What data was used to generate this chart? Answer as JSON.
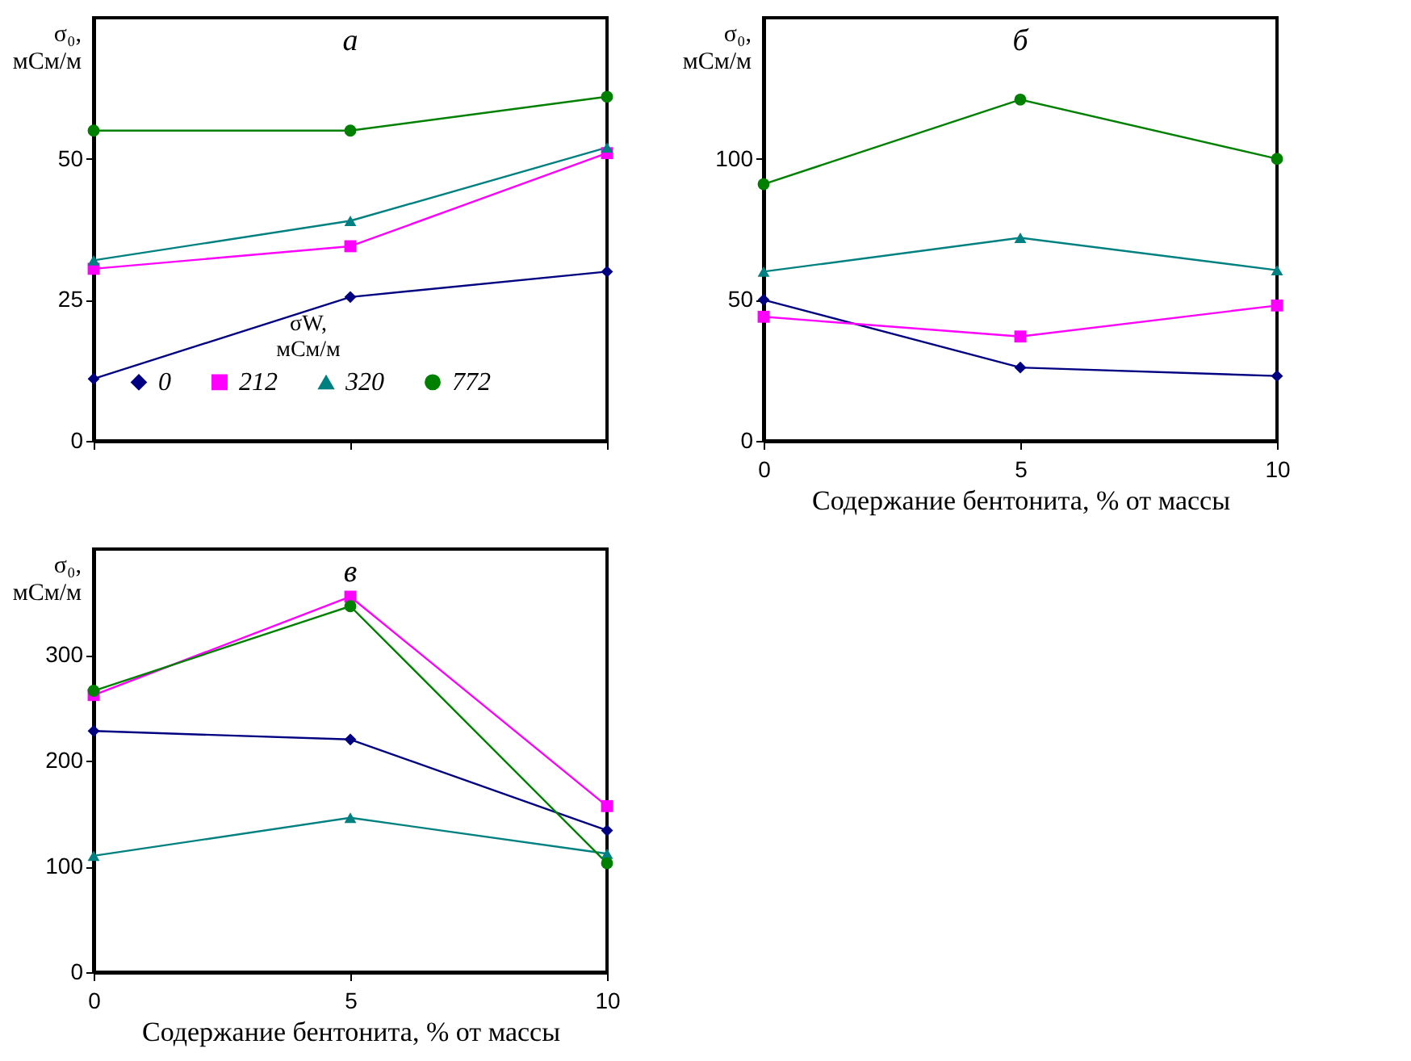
{
  "chart_data": [
    {
      "type": "line",
      "title": "а",
      "x": [
        0,
        5,
        10
      ],
      "xlim": [
        0,
        10
      ],
      "xticks": [
        0,
        5,
        10
      ],
      "ylim": [
        0,
        75
      ],
      "yticks": [
        0,
        25,
        50
      ],
      "ylabel": "σ₀, мСм/м",
      "tick_labels": "y",
      "legend": "bottom",
      "legend_title": "σW, мСм/м",
      "grid": false,
      "series": [
        {
          "name": "0",
          "color": "#000080",
          "marker": "diamond",
          "values": [
            11,
            25.5,
            30
          ]
        },
        {
          "name": "212",
          "color": "#ff00ff",
          "marker": "square",
          "values": [
            30.5,
            34.5,
            51
          ]
        },
        {
          "name": "320",
          "color": "#008080",
          "marker": "triangle",
          "values": [
            32,
            39,
            52
          ]
        },
        {
          "name": "772",
          "color": "#008000",
          "marker": "circle",
          "values": [
            55,
            55,
            61
          ]
        }
      ]
    },
    {
      "type": "line",
      "title": "б",
      "x": [
        0,
        5,
        10
      ],
      "xlim": [
        0,
        10
      ],
      "xticks": [
        0,
        5,
        10
      ],
      "ylim": [
        0,
        150
      ],
      "yticks": [
        0,
        50,
        100
      ],
      "ylabel": "σ₀, мСм/м",
      "xlabel": "Содержание бентонита, % от массы",
      "legend": false,
      "grid": false,
      "series": [
        {
          "color": "#000080",
          "marker": "diamond",
          "values": [
            50,
            26,
            23
          ]
        },
        {
          "color": "#ff00ff",
          "marker": "square",
          "values": [
            44,
            37,
            48
          ]
        },
        {
          "color": "#008080",
          "marker": "triangle",
          "values": [
            60,
            72,
            60.5
          ]
        },
        {
          "color": "#008000",
          "marker": "circle",
          "values": [
            91,
            121,
            100
          ]
        }
      ]
    },
    {
      "type": "line",
      "title": "в",
      "x": [
        0,
        5,
        10
      ],
      "xlim": [
        0,
        10
      ],
      "xticks": [
        0,
        5,
        10
      ],
      "ylim": [
        0,
        400
      ],
      "yticks": [
        0,
        100,
        200,
        300
      ],
      "ylabel": "σ₀, мСм/м",
      "xlabel": "Содержание бентонита, % от массы",
      "legend": false,
      "grid": false,
      "series": [
        {
          "color": "#000080",
          "marker": "diamond",
          "values": [
            228,
            220,
            134
          ]
        },
        {
          "color": "#ff00ff",
          "marker": "square",
          "values": [
            262,
            355,
            157
          ]
        },
        {
          "color": "#008080",
          "marker": "triangle",
          "values": [
            110,
            146,
            112
          ]
        },
        {
          "color": "#008000",
          "marker": "circle",
          "values": [
            266,
            346,
            103
          ]
        }
      ]
    }
  ]
}
